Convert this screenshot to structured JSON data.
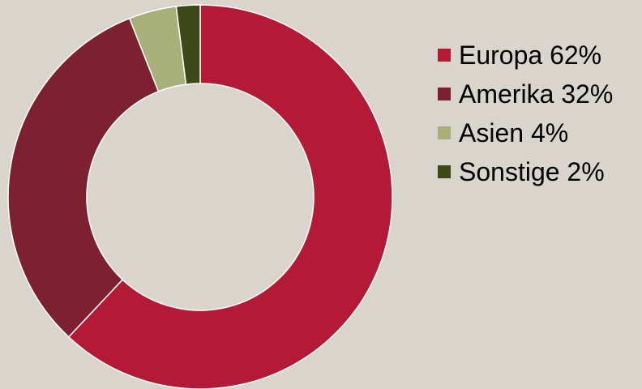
{
  "chart_data": {
    "type": "pie",
    "title": "",
    "donut": true,
    "legend_position": "right",
    "series": [
      {
        "label": "Europa 62%",
        "value": 62,
        "color": "#b41a35"
      },
      {
        "label": "Amerika 32%",
        "value": 32,
        "color": "#7d2030"
      },
      {
        "label": "Asien 4%",
        "value": 4,
        "color": "#a8b07a"
      },
      {
        "label": "Sonstige 2%",
        "value": 2,
        "color": "#3d4a18"
      }
    ]
  }
}
